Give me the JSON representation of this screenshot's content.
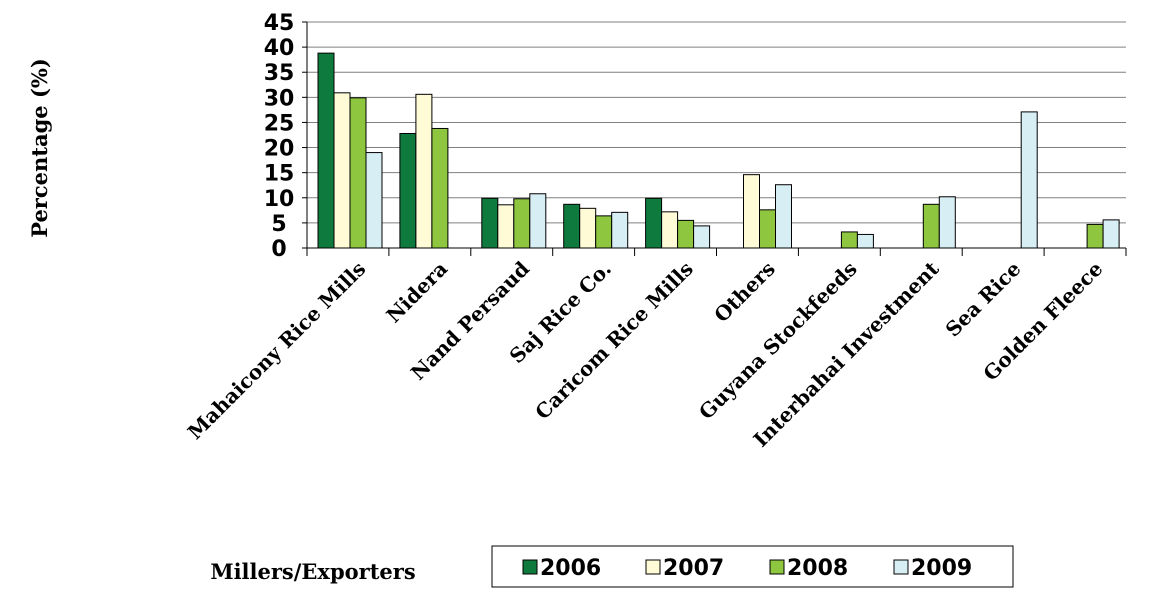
{
  "chart_data": {
    "type": "bar",
    "title": "",
    "xlabel": "Millers/Exporters",
    "ylabel": "Percentage (%)",
    "ylim": [
      0,
      45
    ],
    "yticks": [
      0,
      5,
      10,
      15,
      20,
      25,
      30,
      35,
      40,
      45
    ],
    "grid": "horizontal",
    "legend_placement": "bottom",
    "categories": [
      "Mahaicony Rice Mills",
      "Nidera",
      "Nand  Persaud",
      "Saj Rice Co.",
      "Caricom Rice Mills",
      "Others",
      "Guyana Stockfeeds",
      "Interbahai Investment",
      "Sea Rice",
      "Golden Fleece"
    ],
    "series": [
      {
        "name": "2006",
        "color": "#0f7a3d",
        "values": [
          38.8,
          22.8,
          9.9,
          8.7,
          9.9,
          null,
          null,
          null,
          null,
          null
        ]
      },
      {
        "name": "2007",
        "color": "#fefbd6",
        "values": [
          30.9,
          30.6,
          8.6,
          7.9,
          7.2,
          14.6,
          null,
          null,
          null,
          null
        ]
      },
      {
        "name": "2008",
        "color": "#8ec63f",
        "values": [
          29.9,
          23.8,
          9.8,
          6.4,
          5.5,
          7.6,
          3.2,
          8.7,
          null,
          4.7
        ]
      },
      {
        "name": "2009",
        "color": "#d7eef5",
        "values": [
          19.0,
          null,
          10.8,
          7.1,
          4.4,
          12.6,
          2.7,
          10.2,
          27.1,
          5.6
        ]
      }
    ]
  }
}
